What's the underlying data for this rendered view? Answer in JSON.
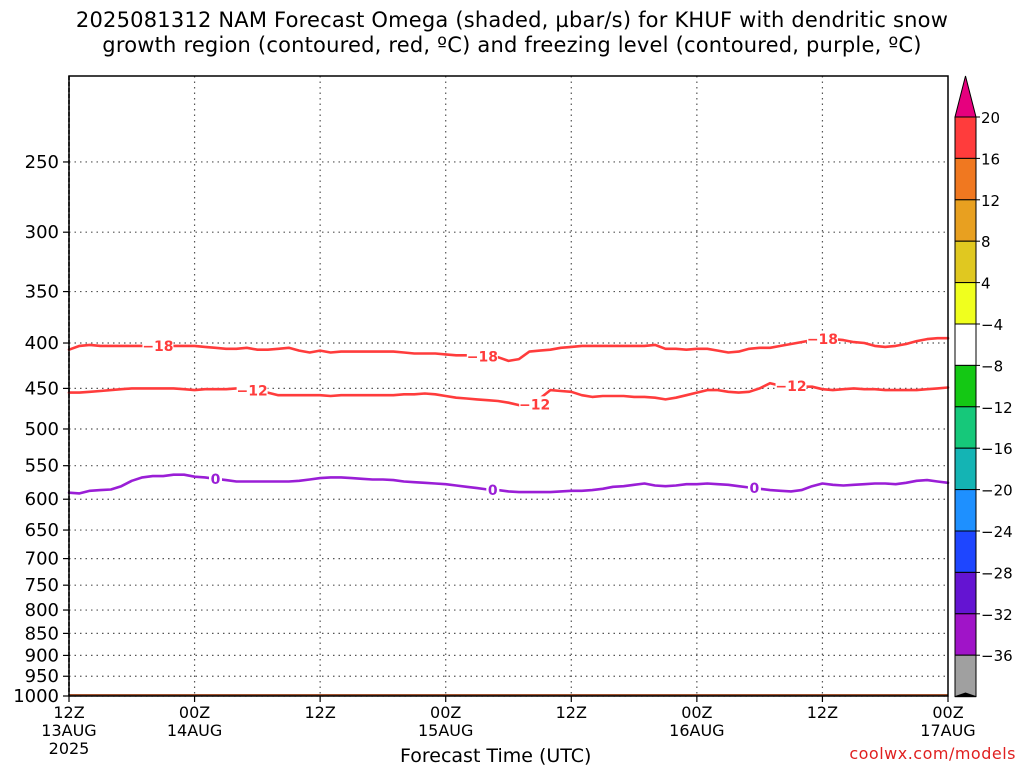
{
  "title_line1": "2025081312 NAM Forecast Omega (shaded, µbar/s) for KHUF with dendritic snow",
  "title_line2": "growth region (contoured, red, ºC) and freezing level (contoured, purple, ºC)",
  "watermark": "coolwx.com/models",
  "chart_data": {
    "type": "line",
    "title": "2025081312 NAM Forecast Omega (shaded, µbar/s) for KHUF with dendritic snow growth region (contoured, red, ºC) and freezing level (contoured, purple, ºC)",
    "xlabel": "Forecast Time (UTC)",
    "ylabel": "",
    "y_scale": "log-pressure (inverted)",
    "ylim": [
      1000,
      200
    ],
    "y_ticks": [
      250,
      300,
      350,
      400,
      450,
      500,
      550,
      600,
      650,
      700,
      750,
      800,
      850,
      900,
      950,
      1000
    ],
    "x_ticks": [
      {
        "hour": 0,
        "label": "12Z",
        "date": "13AUG",
        "year": "2025"
      },
      {
        "hour": 12,
        "label": "00Z",
        "date": "14AUG",
        "year": ""
      },
      {
        "hour": 24,
        "label": "12Z",
        "date": "",
        "year": ""
      },
      {
        "hour": 36,
        "label": "00Z",
        "date": "15AUG",
        "year": ""
      },
      {
        "hour": 48,
        "label": "12Z",
        "date": "",
        "year": ""
      },
      {
        "hour": 60,
        "label": "00Z",
        "date": "16AUG",
        "year": ""
      },
      {
        "hour": 72,
        "label": "12Z",
        "date": "",
        "year": ""
      },
      {
        "hour": 84,
        "label": "00Z",
        "date": "17AUG",
        "year": ""
      }
    ],
    "xlim": [
      0,
      84
    ],
    "grid": true,
    "series": [
      {
        "name": "-18",
        "color": "#ff3c3c",
        "label_at_hours": [
          8.5,
          39.5,
          72
        ],
        "x": [
          0,
          1,
          2,
          3,
          4,
          5,
          6,
          7,
          8,
          9,
          10,
          11,
          12,
          13,
          14,
          15,
          16,
          17,
          18,
          19,
          20,
          21,
          22,
          23,
          24,
          25,
          26,
          27,
          28,
          29,
          30,
          31,
          32,
          33,
          34,
          35,
          36,
          37,
          38,
          39,
          40,
          41,
          42,
          43,
          44,
          45,
          46,
          47,
          48,
          49,
          50,
          51,
          52,
          53,
          54,
          55,
          56,
          57,
          58,
          59,
          60,
          61,
          62,
          63,
          64,
          65,
          66,
          67,
          68,
          69,
          70,
          71,
          72,
          73,
          74,
          75,
          76,
          77,
          78,
          79,
          80,
          81,
          82,
          83,
          84
        ],
        "y": [
          407,
          403,
          402,
          403,
          403,
          403,
          403,
          403,
          403,
          403,
          403,
          403,
          403,
          404,
          405,
          406,
          406,
          405,
          407,
          407,
          406,
          405,
          408,
          410,
          408,
          410,
          409,
          409,
          409,
          409,
          409,
          409,
          410,
          411,
          411,
          411,
          412,
          413,
          413,
          414,
          414,
          415,
          419,
          417,
          409,
          408,
          407,
          405,
          404,
          403,
          403,
          403,
          403,
          403,
          403,
          403,
          402,
          406,
          406,
          407,
          406,
          406,
          408,
          410,
          409,
          406,
          405,
          405,
          403,
          401,
          399,
          397,
          396,
          396,
          397,
          399,
          400,
          403,
          404,
          403,
          401,
          398,
          396,
          395,
          395
        ]
      },
      {
        "name": "-12",
        "color": "#ff3c3c",
        "label_at_hours": [
          17.5,
          44.5,
          69
        ],
        "x": [
          0,
          1,
          2,
          3,
          4,
          5,
          6,
          7,
          8,
          9,
          10,
          11,
          12,
          13,
          14,
          15,
          16,
          17,
          18,
          19,
          20,
          21,
          22,
          23,
          24,
          25,
          26,
          27,
          28,
          29,
          30,
          31,
          32,
          33,
          34,
          35,
          36,
          37,
          38,
          39,
          40,
          41,
          42,
          43,
          44,
          45,
          46,
          47,
          48,
          49,
          50,
          51,
          52,
          53,
          54,
          55,
          56,
          57,
          58,
          59,
          60,
          61,
          62,
          63,
          64,
          65,
          66,
          67,
          68,
          69,
          70,
          71,
          72,
          73,
          74,
          75,
          76,
          77,
          78,
          79,
          80,
          81,
          82,
          83,
          84
        ],
        "y": [
          455,
          455,
          454,
          453,
          452,
          451,
          450,
          450,
          450,
          450,
          450,
          451,
          452,
          451,
          451,
          451,
          450,
          452,
          453,
          455,
          458,
          458,
          458,
          458,
          458,
          459,
          458,
          458,
          458,
          458,
          458,
          458,
          457,
          457,
          456,
          457,
          459,
          461,
          462,
          463,
          464,
          465,
          467,
          470,
          476,
          462,
          452,
          453,
          454,
          458,
          460,
          459,
          459,
          459,
          460,
          460,
          461,
          463,
          461,
          458,
          455,
          452,
          452,
          454,
          455,
          454,
          450,
          444,
          447,
          447,
          448,
          448,
          451,
          452,
          451,
          450,
          451,
          451,
          452,
          452,
          452,
          452,
          451,
          450,
          449
        ]
      },
      {
        "name": "0",
        "color": "#9a1ed6",
        "label_at_hours": [
          14,
          40.5,
          65.5
        ],
        "x": [
          0,
          1,
          2,
          3,
          4,
          5,
          6,
          7,
          8,
          9,
          10,
          11,
          12,
          13,
          14,
          15,
          16,
          17,
          18,
          19,
          20,
          21,
          22,
          23,
          24,
          25,
          26,
          27,
          28,
          29,
          30,
          31,
          32,
          33,
          34,
          35,
          36,
          37,
          38,
          39,
          40,
          41,
          42,
          43,
          44,
          45,
          46,
          47,
          48,
          49,
          50,
          51,
          52,
          53,
          54,
          55,
          56,
          57,
          58,
          59,
          60,
          61,
          62,
          63,
          64,
          65,
          66,
          67,
          68,
          69,
          70,
          71,
          72,
          73,
          74,
          75,
          76,
          77,
          78,
          79,
          80,
          81,
          82,
          83,
          84
        ],
        "y": [
          590,
          591,
          587,
          586,
          585,
          580,
          572,
          567,
          565,
          565,
          563,
          563,
          566,
          567,
          569,
          571,
          573,
          573,
          573,
          573,
          573,
          573,
          572,
          570,
          568,
          567,
          567,
          568,
          569,
          570,
          570,
          571,
          573,
          574,
          575,
          576,
          577,
          579,
          581,
          583,
          585,
          586,
          588,
          589,
          589,
          589,
          589,
          588,
          587,
          587,
          586,
          584,
          581,
          580,
          578,
          576,
          579,
          580,
          579,
          577,
          577,
          576,
          577,
          578,
          580,
          582,
          584,
          586,
          587,
          588,
          586,
          580,
          576,
          578,
          579,
          578,
          577,
          576,
          576,
          577,
          575,
          572,
          571,
          573,
          575
        ]
      }
    ],
    "surface_fill": {
      "color": "#a0522d",
      "pressure_top": 1000
    },
    "colorbar": {
      "triangle_top_color": "#e6007e",
      "triangle_bottom_color": "#000000",
      "levels": [
        {
          "label": "20",
          "color": "#ff3c3c"
        },
        {
          "label": "16",
          "color": "#f07820"
        },
        {
          "label": "12",
          "color": "#e8a020"
        },
        {
          "label": "8",
          "color": "#e0c820"
        },
        {
          "label": "4",
          "color": "#f0ff1e"
        },
        {
          "label": "−4",
          "color": "#ffffff"
        },
        {
          "label": "−8",
          "color": "#14c814"
        },
        {
          "label": "−12",
          "color": "#16c87a"
        },
        {
          "label": "−16",
          "color": "#14b4b4"
        },
        {
          "label": "−20",
          "color": "#1e90ff"
        },
        {
          "label": "−24",
          "color": "#1e46ff"
        },
        {
          "label": "−28",
          "color": "#6414d2"
        },
        {
          "label": "−32",
          "color": "#a014c8"
        },
        {
          "label": "−36",
          "color": "#a0a0a0"
        }
      ]
    }
  }
}
